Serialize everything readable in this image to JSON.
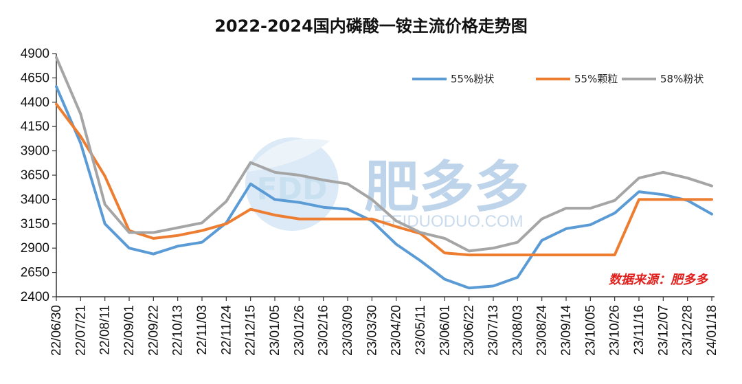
{
  "chart_data": {
    "type": "line",
    "title": "2022-2024国内磷酸一铵主流价格走势图",
    "source_note": "数据来源：肥多多",
    "watermark": {
      "brand": "肥多多",
      "logo_text": "FDD",
      "url": "FEIDUODUO.COM"
    },
    "ylim": [
      2400,
      4900
    ],
    "yticks": [
      2400,
      2650,
      2900,
      3150,
      3400,
      3650,
      3900,
      4150,
      4400,
      4650,
      4900
    ],
    "xticks": [
      "22/06/30",
      "22/07/21",
      "22/08/11",
      "22/09/01",
      "22/09/22",
      "22/10/13",
      "22/11/03",
      "22/11/24",
      "22/12/15",
      "23/01/05",
      "23/01/26",
      "23/02/16",
      "23/03/09",
      "23/03/30",
      "23/04/20",
      "23/05/11",
      "23/06/01",
      "23/06/22",
      "23/07/13",
      "23/08/03",
      "23/08/24",
      "23/09/14",
      "23/10/05",
      "23/10/26",
      "23/11/16",
      "23/12/07",
      "23/12/28",
      "24/01/18"
    ],
    "grid": false,
    "legend_position": "top-right",
    "series": [
      {
        "name": "55%粉状",
        "color": "#5b9bd5",
        "x": [
          0,
          1,
          2,
          3,
          4,
          5,
          6,
          7,
          8,
          9,
          10,
          11,
          12,
          13,
          14,
          15,
          16,
          17,
          18,
          19,
          20,
          21,
          22,
          23,
          24,
          25,
          26,
          27
        ],
        "values": [
          4560,
          3980,
          3150,
          2900,
          2840,
          2920,
          2960,
          3160,
          3560,
          3400,
          3370,
          3320,
          3300,
          3180,
          2940,
          2770,
          2580,
          2490,
          2510,
          2600,
          2980,
          3100,
          3140,
          3260,
          3480,
          3450,
          3390,
          3250
        ]
      },
      {
        "name": "55%颗粒",
        "color": "#ed7d31",
        "x": [
          0,
          1,
          2,
          3,
          4,
          5,
          6,
          7,
          8,
          9,
          10,
          11,
          12,
          13,
          14,
          15,
          16,
          17,
          18,
          19,
          20,
          21,
          22,
          23,
          24,
          25,
          26,
          27
        ],
        "values": [
          4380,
          4050,
          3640,
          3080,
          3000,
          3030,
          3080,
          3150,
          3300,
          3240,
          3200,
          3200,
          3200,
          3200,
          3120,
          3050,
          2850,
          2830,
          2830,
          2830,
          2830,
          2830,
          2830,
          2830,
          3400,
          3400,
          3400,
          3400
        ]
      },
      {
        "name": "58%粉状",
        "color": "#a5a5a5",
        "x": [
          0,
          1,
          2,
          3,
          4,
          5,
          6,
          7,
          8,
          9,
          10,
          11,
          12,
          13,
          14,
          15,
          16,
          17,
          18,
          19,
          20,
          21,
          22,
          23,
          24,
          25,
          26,
          27
        ],
        "values": [
          4860,
          4280,
          3350,
          3060,
          3060,
          3110,
          3160,
          3380,
          3780,
          3680,
          3650,
          3600,
          3560,
          3400,
          3180,
          3060,
          3000,
          2870,
          2900,
          2960,
          3200,
          3310,
          3310,
          3390,
          3620,
          3680,
          3620,
          3540
        ]
      }
    ]
  }
}
